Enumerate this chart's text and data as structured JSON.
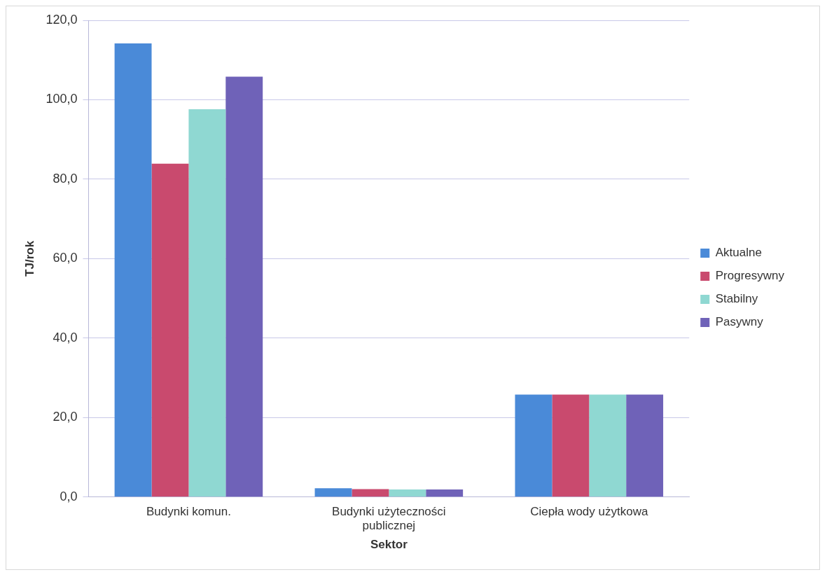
{
  "chart_data": {
    "type": "bar",
    "xlabel": "Sektor",
    "ylabel": "TJ/rok",
    "categories": [
      "Budynki komun.",
      "Budynki użyteczności publicznej",
      "Ciepła wody użytkowa"
    ],
    "series": [
      {
        "name": "Aktualne",
        "color": "#4a8ad8",
        "values": [
          114.2,
          2.2,
          25.8
        ]
      },
      {
        "name": "Progresywny",
        "color": "#c94a6e",
        "values": [
          83.9,
          2.0,
          25.8
        ]
      },
      {
        "name": "Stabilny",
        "color": "#8fd8d2",
        "values": [
          97.6,
          1.9,
          25.8
        ]
      },
      {
        "name": "Pasywny",
        "color": "#6f62b8",
        "values": [
          105.8,
          1.9,
          25.8
        ]
      }
    ],
    "ylim": [
      0,
      120
    ],
    "yticks": [
      {
        "value": 0,
        "label": "0,0"
      },
      {
        "value": 20,
        "label": "20,0"
      },
      {
        "value": 40,
        "label": "40,0"
      },
      {
        "value": 60,
        "label": "60,0"
      },
      {
        "value": 80,
        "label": "80,0"
      },
      {
        "value": 100,
        "label": "100,0"
      },
      {
        "value": 120,
        "label": "120,0"
      }
    ],
    "grid": "y",
    "legend": "right"
  }
}
